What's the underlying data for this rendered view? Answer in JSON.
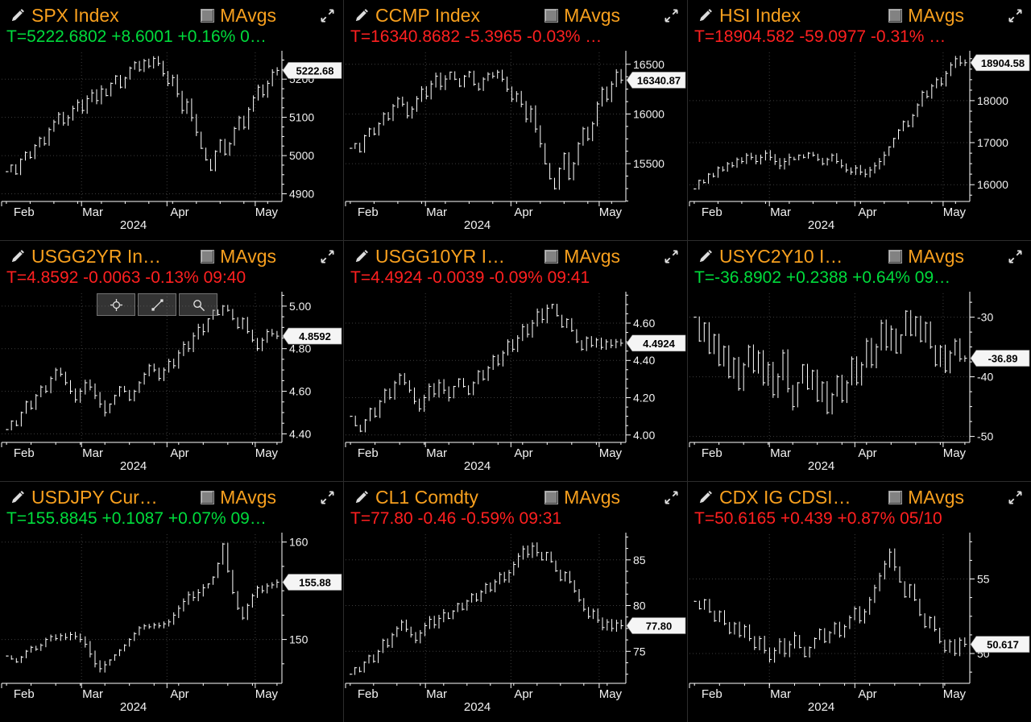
{
  "labels": {
    "mavgs": "MAvgs"
  },
  "colors": {
    "background": "#000000",
    "orange": "#f8a01e",
    "green": "#00dc3c",
    "red": "#ff2020",
    "bar": "#ffffff",
    "axis": "#ffffff",
    "axis_text": "#f2f2f2",
    "grid": "#3d3d3d",
    "badge_bg": "#f5f5f5",
    "badge_text": "#000000"
  },
  "x_axis": {
    "months": [
      "Feb",
      "Mar",
      "Apr",
      "May"
    ],
    "year": "2024"
  },
  "chart_data": [
    {
      "type": "ohlc_bar",
      "title": "SPX Index",
      "quote": "T=5222.6802 +8.6001 +0.16% 0…",
      "quote_color": "green",
      "last_price_label": "5222.68",
      "ylim": [
        4880,
        5270
      ],
      "ytick_values": [
        5200,
        5100,
        5000,
        4900
      ],
      "ytick_labels": [
        "5200",
        "5100",
        "5000",
        "4900"
      ],
      "values": [
        4958,
        4975,
        4952,
        4990,
        5008,
        4995,
        5026,
        5045,
        5031,
        5068,
        5088,
        5108,
        5085,
        5099,
        5123,
        5139,
        5118,
        5149,
        5164,
        5144,
        5174,
        5157,
        5189,
        5208,
        5179,
        5203,
        5229,
        5243,
        5224,
        5248,
        5234,
        5254,
        5241,
        5214,
        5189,
        5204,
        5161,
        5118,
        5140,
        5099,
        5061,
        5019,
        4989,
        4962,
        5011,
        5040,
        5004,
        5031,
        5071,
        5099,
        5074,
        5121,
        5151,
        5179,
        5159,
        5189,
        5218,
        5222.68
      ]
    },
    {
      "type": "ohlc_bar",
      "title": "CCMP Index",
      "quote": "T=16340.8682 -5.3965 -0.03% …",
      "quote_color": "red",
      "last_price_label": "16340.87",
      "ylim": [
        15120,
        16620
      ],
      "ytick_values": [
        16500,
        16000,
        15500
      ],
      "ytick_labels": [
        "16500",
        "16000",
        "15500"
      ],
      "values": [
        15655,
        15702,
        15621,
        15781,
        15850,
        15799,
        15902,
        16001,
        15950,
        16081,
        16152,
        16099,
        15981,
        16050,
        16152,
        16249,
        16180,
        16302,
        16381,
        16279,
        16352,
        16421,
        16350,
        16280,
        16381,
        16421,
        16299,
        16250,
        16352,
        16401,
        16379,
        16421,
        16350,
        16249,
        16150,
        16201,
        16099,
        15949,
        16051,
        15849,
        15701,
        15499,
        15349,
        15249,
        15451,
        15601,
        15349,
        15501,
        15701,
        15851,
        15749,
        15901,
        16101,
        16249,
        16149,
        16301,
        16420,
        16340.87
      ]
    },
    {
      "type": "ohlc_bar",
      "title": "HSI Index",
      "quote": "T=18904.582 -59.0977 -0.31% …",
      "quote_color": "red",
      "last_price_label": "18904.58",
      "ylim": [
        15600,
        19150
      ],
      "ytick_values": [
        18000,
        17000,
        16000
      ],
      "ytick_labels": [
        "18000",
        "17000",
        "16000"
      ],
      "values": [
        15899,
        16101,
        16049,
        16251,
        16199,
        16401,
        16349,
        16499,
        16451,
        16599,
        16549,
        16699,
        16649,
        16549,
        16649,
        16749,
        16649,
        16549,
        16449,
        16549,
        16649,
        16599,
        16699,
        16649,
        16749,
        16699,
        16599,
        16499,
        16599,
        16699,
        16549,
        16449,
        16349,
        16299,
        16399,
        16299,
        16249,
        16349,
        16449,
        16549,
        16699,
        16899,
        17099,
        17299,
        17499,
        17399,
        17649,
        17899,
        18199,
        18099,
        18349,
        18499,
        18399,
        18649,
        18849,
        18999,
        18899,
        18904.58
      ]
    },
    {
      "type": "ohlc_bar",
      "title": "USGG2YR In…",
      "quote": "T=4.8592 -0.0063 -0.13% 09:40",
      "quote_color": "red",
      "last_price_label": "4.8592",
      "show_tools": true,
      "tools": [
        "crosshair-icon",
        "trendline-icon",
        "zoom-icon"
      ],
      "ylim": [
        4.36,
        5.06
      ],
      "ytick_values": [
        5.0,
        4.8,
        4.6,
        4.4
      ],
      "ytick_labels": [
        "5.00",
        "4.80",
        "4.60",
        "4.40"
      ],
      "values": [
        4.42,
        4.46,
        4.44,
        4.5,
        4.55,
        4.52,
        4.58,
        4.62,
        4.6,
        4.66,
        4.7,
        4.68,
        4.64,
        4.6,
        4.56,
        4.6,
        4.64,
        4.62,
        4.58,
        4.54,
        4.5,
        4.54,
        4.58,
        4.62,
        4.6,
        4.56,
        4.6,
        4.64,
        4.68,
        4.72,
        4.7,
        4.66,
        4.7,
        4.74,
        4.72,
        4.78,
        4.82,
        4.8,
        4.86,
        4.9,
        4.88,
        4.94,
        4.98,
        4.96,
        5.0,
        4.98,
        4.94,
        4.9,
        4.94,
        4.88,
        4.84,
        4.8,
        4.84,
        4.88,
        4.87,
        4.8592
      ]
    },
    {
      "type": "ohlc_bar",
      "title": "USGG10YR I…",
      "quote": "T=4.4924 -0.0039 -0.09% 09:41",
      "quote_color": "red",
      "last_price_label": "4.4924",
      "ylim": [
        3.96,
        4.76
      ],
      "ytick_values": [
        4.6,
        4.4,
        4.2,
        4.0
      ],
      "ytick_labels": [
        "4.60",
        "4.40",
        "4.20",
        "4.00"
      ],
      "values": [
        4.1,
        4.05,
        4.02,
        4.08,
        4.14,
        4.1,
        4.18,
        4.24,
        4.2,
        4.28,
        4.32,
        4.28,
        4.24,
        4.18,
        4.14,
        4.2,
        4.26,
        4.22,
        4.28,
        4.24,
        4.2,
        4.26,
        4.3,
        4.26,
        4.22,
        4.28,
        4.34,
        4.3,
        4.36,
        4.42,
        4.38,
        4.44,
        4.5,
        4.46,
        4.52,
        4.58,
        4.54,
        4.6,
        4.66,
        4.62,
        4.68,
        4.7,
        4.64,
        4.58,
        4.62,
        4.56,
        4.5,
        4.46,
        4.52,
        4.48,
        4.51,
        4.47,
        4.5,
        4.48,
        4.5,
        4.4924
      ]
    },
    {
      "type": "ohlc_bar",
      "title": "USYC2Y10 I…",
      "quote": "T=-36.8902 +0.2388 +0.64% 09…",
      "quote_color": "green",
      "last_price_label": "-36.89",
      "ylim": [
        -51,
        -26
      ],
      "ytick_values": [
        -30,
        -40,
        -50
      ],
      "ytick_labels": [
        "-30",
        "-40",
        "-50"
      ],
      "values": [
        -30,
        -34,
        -31,
        -36,
        -33,
        -38,
        -35,
        -40,
        -37,
        -42,
        -38,
        -35,
        -39,
        -36,
        -41,
        -38,
        -43,
        -40,
        -36,
        -42,
        -45,
        -41,
        -38,
        -42,
        -39,
        -44,
        -41,
        -46,
        -43,
        -40,
        -44,
        -41,
        -37,
        -41,
        -38,
        -34,
        -38,
        -35,
        -31,
        -35,
        -32,
        -36,
        -33,
        -29,
        -33,
        -30,
        -34,
        -31,
        -35,
        -38,
        -35,
        -39,
        -36,
        -34,
        -37,
        -36.89
      ]
    },
    {
      "type": "ohlc_bar",
      "title": "USDJPY Cur…",
      "quote": "T=155.8845 +0.1087 +0.07% 09…",
      "quote_color": "green",
      "last_price_label": "155.88",
      "ylim": [
        145.5,
        160.8
      ],
      "ytick_values": [
        160,
        150
      ],
      "ytick_labels": [
        "160",
        "150"
      ],
      "values": [
        148.3,
        148.0,
        147.7,
        148.2,
        148.8,
        149.2,
        149.0,
        149.4,
        150.0,
        150.3,
        150.1,
        150.4,
        150.2,
        150.5,
        150.3,
        150.0,
        149.5,
        148.5,
        147.5,
        147.0,
        147.4,
        147.9,
        148.4,
        148.9,
        149.4,
        150.0,
        150.6,
        151.2,
        151.4,
        151.3,
        151.5,
        151.4,
        151.6,
        151.8,
        152.5,
        153.2,
        153.9,
        154.6,
        154.3,
        154.8,
        155.3,
        155.7,
        156.4,
        157.8,
        159.8,
        157.0,
        154.8,
        153.2,
        152.2,
        153.5,
        154.5,
        155.3,
        155.0,
        155.5,
        155.6,
        155.88
      ]
    },
    {
      "type": "ohlc_bar",
      "title": "CL1 Comdty",
      "quote": "T=77.80 -0.46 -0.59% 09:31",
      "quote_color": "red",
      "last_price_label": "77.80",
      "ylim": [
        71.5,
        87.8
      ],
      "ytick_values": [
        85,
        80,
        75
      ],
      "ytick_labels": [
        "85",
        "80",
        "75"
      ],
      "values": [
        72.5,
        73.2,
        72.8,
        73.8,
        74.5,
        73.9,
        75.0,
        76.2,
        75.6,
        76.8,
        77.5,
        78.2,
        77.4,
        76.8,
        76.2,
        77.0,
        77.8,
        78.5,
        77.9,
        78.6,
        79.2,
        78.6,
        79.4,
        80.2,
        79.6,
        80.5,
        81.2,
        80.6,
        81.5,
        82.3,
        81.7,
        82.6,
        83.4,
        82.8,
        83.6,
        84.5,
        85.4,
        86.2,
        85.6,
        86.5,
        85.8,
        85.0,
        85.8,
        84.8,
        83.8,
        82.8,
        83.6,
        82.6,
        81.6,
        80.6,
        79.6,
        78.8,
        79.4,
        78.4,
        77.6,
        78.2,
        77.5,
        78.1,
        77.8
      ]
    },
    {
      "type": "ohlc_bar",
      "title": "CDX IG CDSI…",
      "quote": "T=50.6165 +0.439 +0.87% 05/10",
      "quote_color": "red",
      "last_price_label": "50.617",
      "ylim": [
        48.0,
        58.0
      ],
      "ytick_values": [
        55,
        50
      ],
      "ytick_labels": [
        "55",
        "50"
      ],
      "values": [
        53.5,
        53.0,
        53.6,
        52.8,
        52.2,
        52.8,
        52.0,
        51.4,
        52.0,
        51.2,
        51.8,
        51.0,
        50.4,
        51.0,
        50.2,
        49.6,
        50.2,
        50.8,
        50.0,
        50.6,
        51.2,
        50.4,
        49.8,
        50.4,
        51.0,
        51.6,
        50.8,
        51.4,
        52.0,
        51.2,
        51.8,
        52.4,
        53.0,
        52.2,
        52.8,
        53.6,
        54.4,
        55.2,
        56.0,
        56.8,
        55.8,
        54.8,
        53.8,
        54.6,
        53.6,
        52.6,
        51.8,
        52.4,
        51.6,
        50.8,
        50.2,
        50.8,
        50.0,
        50.9,
        50.617
      ]
    }
  ]
}
